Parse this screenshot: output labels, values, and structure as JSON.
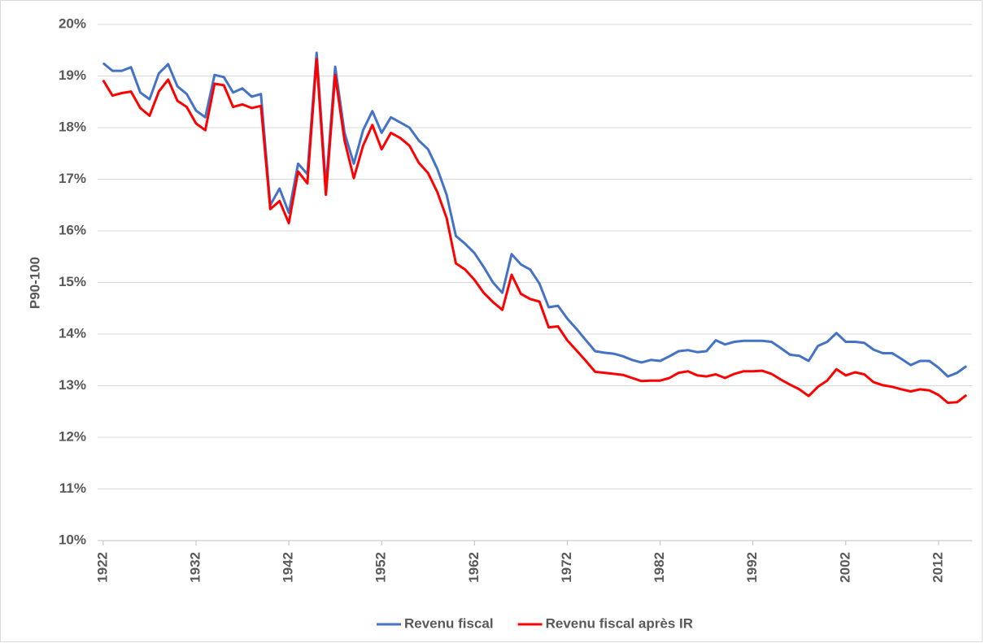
{
  "chart_data": {
    "type": "line",
    "y_label": "P90-100",
    "x": [
      1922,
      1923,
      1924,
      1925,
      1926,
      1927,
      1928,
      1929,
      1930,
      1931,
      1932,
      1933,
      1934,
      1935,
      1936,
      1937,
      1938,
      1939,
      1940,
      1941,
      1942,
      1943,
      1944,
      1945,
      1946,
      1947,
      1948,
      1949,
      1950,
      1951,
      1952,
      1953,
      1954,
      1955,
      1956,
      1957,
      1958,
      1959,
      1960,
      1961,
      1962,
      1963,
      1964,
      1965,
      1966,
      1967,
      1968,
      1969,
      1970,
      1971,
      1972,
      1973,
      1974,
      1975,
      1976,
      1977,
      1978,
      1979,
      1980,
      1981,
      1982,
      1983,
      1984,
      1985,
      1986,
      1987,
      1988,
      1989,
      1990,
      1991,
      1992,
      1993,
      1994,
      1995,
      1996,
      1997,
      1998,
      1999,
      2000,
      2001,
      2002,
      2003,
      2004,
      2005,
      2006,
      2007,
      2008,
      2009,
      2010,
      2011,
      2012,
      2013,
      2014,
      2015
    ],
    "series": [
      {
        "name": "Revenu fiscal",
        "color": "#4472c4",
        "values": [
          19.25,
          19.1,
          19.1,
          19.17,
          18.68,
          18.55,
          19.05,
          19.23,
          18.8,
          18.65,
          18.33,
          18.2,
          19.02,
          18.98,
          18.68,
          18.76,
          18.6,
          18.65,
          16.5,
          16.82,
          16.35,
          17.3,
          17.1,
          19.45,
          16.85,
          19.18,
          17.9,
          17.3,
          17.95,
          18.32,
          17.9,
          18.2,
          18.1,
          18.0,
          17.75,
          17.58,
          17.2,
          16.7,
          15.9,
          15.75,
          15.57,
          15.3,
          15.0,
          14.8,
          15.55,
          15.35,
          15.25,
          14.98,
          14.52,
          14.55,
          14.3,
          14.1,
          13.88,
          13.67,
          13.64,
          13.62,
          13.57,
          13.5,
          13.45,
          13.5,
          13.48,
          13.57,
          13.67,
          13.69,
          13.65,
          13.67,
          13.88,
          13.8,
          13.85,
          13.87,
          13.87,
          13.87,
          13.85,
          13.73,
          13.6,
          13.58,
          13.48,
          13.77,
          13.85,
          14.02,
          13.85,
          13.85,
          13.83,
          13.7,
          13.63,
          13.63,
          13.52,
          13.4,
          13.48,
          13.48,
          13.35,
          13.18,
          13.25,
          13.38
        ]
      },
      {
        "name": "Revenu fiscal après IR",
        "color": "#ff0000",
        "values": [
          18.92,
          18.62,
          18.67,
          18.7,
          18.38,
          18.23,
          18.7,
          18.93,
          18.52,
          18.4,
          18.08,
          17.95,
          18.85,
          18.82,
          18.4,
          18.45,
          18.38,
          18.42,
          16.42,
          16.58,
          16.15,
          17.15,
          16.92,
          19.33,
          16.7,
          19.02,
          17.75,
          17.02,
          17.65,
          18.05,
          17.58,
          17.9,
          17.8,
          17.65,
          17.32,
          17.12,
          16.75,
          16.25,
          15.37,
          15.25,
          15.05,
          14.8,
          14.62,
          14.47,
          15.15,
          14.78,
          14.68,
          14.63,
          14.13,
          14.15,
          13.88,
          13.68,
          13.48,
          13.27,
          13.25,
          13.23,
          13.21,
          13.15,
          13.09,
          13.1,
          13.1,
          13.15,
          13.25,
          13.28,
          13.2,
          13.18,
          13.22,
          13.15,
          13.23,
          13.28,
          13.28,
          13.29,
          13.23,
          13.12,
          13.02,
          12.93,
          12.8,
          12.98,
          13.1,
          13.32,
          13.2,
          13.26,
          13.22,
          13.07,
          13.01,
          12.98,
          12.93,
          12.89,
          12.93,
          12.91,
          12.82,
          12.67,
          12.68,
          12.82
        ]
      }
    ],
    "xlim": [
      1921.4,
      2015.6
    ],
    "xticks": [
      1922,
      1932,
      1942,
      1952,
      1962,
      1972,
      1982,
      1992,
      2002,
      2012
    ],
    "ylim": [
      10,
      20
    ],
    "yticks": [
      {
        "value": 10,
        "label": "10%"
      },
      {
        "value": 11,
        "label": "11%"
      },
      {
        "value": 12,
        "label": "12%"
      },
      {
        "value": 13,
        "label": "13%"
      },
      {
        "value": 14,
        "label": "14%"
      },
      {
        "value": 15,
        "label": "15%"
      },
      {
        "value": 16,
        "label": "16%"
      },
      {
        "value": 17,
        "label": "17%"
      },
      {
        "value": 18,
        "label": "18%"
      },
      {
        "value": 19,
        "label": "19%"
      },
      {
        "value": 20,
        "label": "20%"
      }
    ],
    "grid": true,
    "legend": "bottom"
  }
}
